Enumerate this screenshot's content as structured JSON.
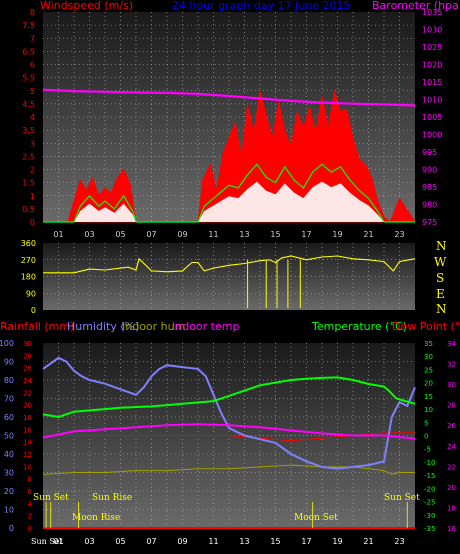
{
  "colors": {
    "wind": "#ff0000",
    "wind_avg": "#00ff00",
    "wind_low": "#ffffff",
    "barometer": "#ff00ff",
    "direction": "#ffff00",
    "temperature": "#00ff00",
    "dewpoint": "#ff0000",
    "humidity": "#8080ff",
    "indoor_temp": "#ff00ff",
    "indoor_hum": "#a0a000",
    "rain": "#ff0000",
    "title": "#0000ff",
    "label": "#ffffff",
    "tick": "#cfcfcf"
  },
  "header": {
    "windspeed_label": "Windspeed (m/s)",
    "graph_title": "24 hour graph day  17 June 2015",
    "barometer_label": "Barometer (hpa)"
  },
  "direction_letters": [
    "N",
    "W",
    "S",
    "E",
    "N"
  ],
  "bottom_legend": {
    "rainfall": "Rainfall (mm)",
    "humidity": "Humidity (%)",
    "indoor_hum": "Indoor hum",
    "indoor_temp": "Indoor temp",
    "temperature": "Temperature (°C)",
    "dewpoint": "Dew Point (°C)"
  },
  "events": {
    "sun_set_left": "Sun Set",
    "sun_rise": "Sun Rise",
    "moon_rise": "Moon Rise",
    "moon_set": "Moon Set",
    "sun_set_right": "Sun Set",
    "sun_set_axis": "Sun Set"
  },
  "chart_data": [
    {
      "type": "area",
      "title": "24 hour graph day  17 June 2015",
      "x_hour_ticks": [
        "01",
        "03",
        "05",
        "07",
        "09",
        "11",
        "13",
        "15",
        "17",
        "19",
        "21",
        "23"
      ],
      "left_axis": {
        "label": "Windspeed (m/s)",
        "ylim": [
          0,
          8
        ],
        "ticks": [
          "0",
          "0.5",
          "1",
          "1.5",
          "2",
          "2.5",
          "3",
          "3.5",
          "4",
          "4.5",
          "5",
          "5.5",
          "6",
          "6.5",
          "7",
          "7.5",
          "8"
        ]
      },
      "right_axis": {
        "label": "Barometer (hpa)",
        "ylim": [
          975,
          1035
        ],
        "ticks": [
          "975",
          "980",
          "985",
          "990",
          "995",
          "1000",
          "1005",
          "1010",
          "1015",
          "1020",
          "1025",
          "1030",
          "1035"
        ]
      },
      "series": [
        {
          "name": "Windspeed (m/s)",
          "kind": "gust",
          "hours": [
            0,
            1,
            1.6,
            2,
            2.4,
            2.8,
            3.2,
            3.6,
            4,
            4.4,
            4.8,
            5.2,
            5.6,
            6,
            7,
            8,
            9,
            10,
            10.3,
            10.8,
            11.2,
            11.6,
            12,
            12.4,
            12.8,
            13.2,
            13.6,
            14,
            14.4,
            14.8,
            15.2,
            15.6,
            16,
            16.4,
            16.8,
            17.2,
            17.6,
            18,
            18.4,
            18.8,
            19.2,
            19.6,
            20,
            20.4,
            20.8,
            21.2,
            21.6,
            22,
            22.4,
            23,
            24
          ],
          "values": [
            0,
            0,
            0,
            0.8,
            1.6,
            1.2,
            1.7,
            1.0,
            1.3,
            1.1,
            1.7,
            2.0,
            1.5,
            0,
            0,
            0,
            0,
            0,
            1.6,
            2.2,
            1.2,
            2.6,
            3.2,
            3.8,
            2.5,
            4.5,
            3.4,
            5.0,
            4.1,
            3.2,
            4.6,
            3.5,
            2.9,
            4.2,
            3.6,
            4.4,
            3.4,
            4.8,
            3.6,
            5.0,
            4.2,
            4.3,
            3.2,
            2.4,
            2.2,
            1.7,
            0.8,
            0.2,
            0,
            0.9,
            0
          ]
        },
        {
          "name": "Wind average",
          "kind": "average",
          "hours": [
            0,
            2,
            2.4,
            3,
            3.6,
            4,
            4.6,
            5.2,
            5.8,
            6,
            10,
            10.4,
            11,
            11.6,
            12,
            12.6,
            13.2,
            13.8,
            14.4,
            15,
            15.6,
            16.2,
            16.8,
            17.4,
            18,
            18.6,
            19.2,
            19.8,
            20.4,
            21,
            21.6,
            22,
            24
          ],
          "values": [
            0,
            0,
            0.6,
            1.0,
            0.6,
            0.8,
            0.5,
            1.0,
            0.4,
            0,
            0,
            0.6,
            0.9,
            1.2,
            1.4,
            1.3,
            1.8,
            2.2,
            1.7,
            1.5,
            2.1,
            1.6,
            1.3,
            1.9,
            2.2,
            1.9,
            2.1,
            1.6,
            1.2,
            0.9,
            0.4,
            0,
            0
          ]
        },
        {
          "name": "Barometer (hpa)",
          "kind": "line",
          "hours": [
            0,
            2,
            4,
            6,
            8,
            10,
            12,
            14,
            16,
            18,
            20,
            22,
            24
          ],
          "values": [
            1012.8,
            1012.4,
            1012.2,
            1012.0,
            1011.9,
            1011.6,
            1011.0,
            1010.3,
            1009.6,
            1009.1,
            1008.8,
            1008.6,
            1008.3
          ]
        }
      ]
    },
    {
      "type": "line",
      "title": "",
      "ylim": [
        0,
        360
      ],
      "ticks": [
        "0",
        "90",
        "180",
        "270",
        "360"
      ],
      "series": [
        {
          "name": "Wind direction",
          "hours": [
            0,
            2,
            3,
            4,
            5,
            5.5,
            6,
            6.2,
            7,
            8,
            9,
            9.6,
            10,
            10.4,
            11,
            12,
            13,
            14,
            14.6,
            15,
            15.4,
            16,
            17,
            18,
            19,
            20,
            21,
            22,
            22.6,
            23,
            23.6,
            24
          ],
          "values": [
            200,
            200,
            220,
            215,
            225,
            230,
            215,
            275,
            210,
            205,
            210,
            255,
            255,
            210,
            225,
            240,
            250,
            265,
            270,
            255,
            280,
            290,
            270,
            285,
            290,
            275,
            270,
            260,
            210,
            260,
            270,
            275
          ]
        }
      ]
    },
    {
      "type": "line",
      "title": "",
      "axes": {
        "humidity": {
          "label": "Humidity (%)",
          "ylim": [
            0,
            100
          ],
          "ticks": [
            "0",
            "10",
            "20",
            "30",
            "40",
            "50",
            "60",
            "70",
            "80",
            "90",
            "100"
          ]
        },
        "rainfall": {
          "label": "Rainfall (mm)",
          "ylim": [
            0,
            30
          ],
          "ticks": [
            "0",
            "2",
            "4",
            "6",
            "8",
            "10",
            "12",
            "14",
            "16",
            "18",
            "20",
            "22",
            "24",
            "26",
            "28",
            "30"
          ]
        },
        "temperature": {
          "label": "Temperature (°C)",
          "ylim": [
            -35,
            35
          ],
          "ticks": [
            "-35",
            "-30",
            "-25",
            "-20",
            "-15",
            "-10",
            "-5",
            "0",
            "5",
            "10",
            "15",
            "20",
            "25",
            "30",
            "35"
          ]
        },
        "indoor": {
          "label": "Indoor temp",
          "ylim": [
            16,
            34
          ],
          "ticks": [
            "16",
            "18",
            "20",
            "22",
            "24",
            "26",
            "28",
            "30",
            "32",
            "34"
          ]
        }
      },
      "series": [
        {
          "name": "Humidity (%)",
          "hours": [
            0,
            0.5,
            1,
            1.5,
            2,
            2.5,
            3,
            4,
            5,
            6,
            6.5,
            7,
            7.5,
            8,
            9,
            10,
            10.5,
            11,
            11.5,
            12,
            12.5,
            13,
            14,
            15,
            16,
            17,
            18,
            19,
            20,
            21,
            22,
            22.5,
            23,
            23.5,
            24
          ],
          "values": [
            86,
            89,
            92,
            90,
            85,
            82,
            80,
            78,
            75,
            72,
            76,
            82,
            86,
            88,
            87,
            86,
            82,
            72,
            62,
            54,
            52,
            50,
            48,
            46,
            40,
            36,
            33,
            32,
            33,
            34,
            36,
            60,
            68,
            66,
            76
          ]
        },
        {
          "name": "Temperature (°C)",
          "hours": [
            0,
            1,
            2,
            3,
            4,
            5,
            6,
            7,
            8,
            9,
            10,
            11,
            12,
            13,
            14,
            15,
            16,
            17,
            18,
            19,
            20,
            21,
            22,
            22.3,
            22.8,
            23.4,
            24
          ],
          "values": [
            8,
            7,
            9,
            9.5,
            10,
            10.5,
            10.8,
            11,
            11.5,
            12,
            12.5,
            13,
            15,
            17,
            19,
            20,
            21,
            21.5,
            21.8,
            22,
            21,
            19.5,
            18.5,
            17,
            14,
            13,
            12
          ]
        },
        {
          "name": "Dew Point (°C)",
          "hours": [
            0,
            2,
            4,
            6,
            8,
            10,
            12,
            14,
            16,
            18,
            20,
            22,
            24
          ],
          "values": [
            0,
            0,
            0,
            0,
            0,
            0,
            0,
            -1,
            -2,
            -1,
            0,
            1,
            1
          ]
        },
        {
          "name": "Indoor temp",
          "hours": [
            0,
            1,
            2,
            4,
            6,
            8,
            10,
            12,
            14,
            16,
            18,
            20,
            22,
            24
          ],
          "values": [
            24.8,
            25.1,
            25.4,
            25.6,
            25.8,
            26.0,
            26.1,
            26.0,
            25.8,
            25.5,
            25.2,
            25.0,
            25.0,
            24.7
          ]
        },
        {
          "name": "Indoor hum",
          "hours": [
            0,
            2,
            4,
            6,
            8,
            10,
            12,
            14,
            16,
            18,
            20,
            22,
            22.5,
            23,
            24
          ],
          "values": [
            29,
            30,
            30,
            31,
            31,
            32,
            32,
            33,
            34,
            33,
            33,
            31,
            29,
            30,
            30
          ]
        },
        {
          "name": "Rainfall (mm)",
          "hours": [
            0,
            24
          ],
          "values": [
            0,
            0
          ]
        }
      ]
    }
  ]
}
